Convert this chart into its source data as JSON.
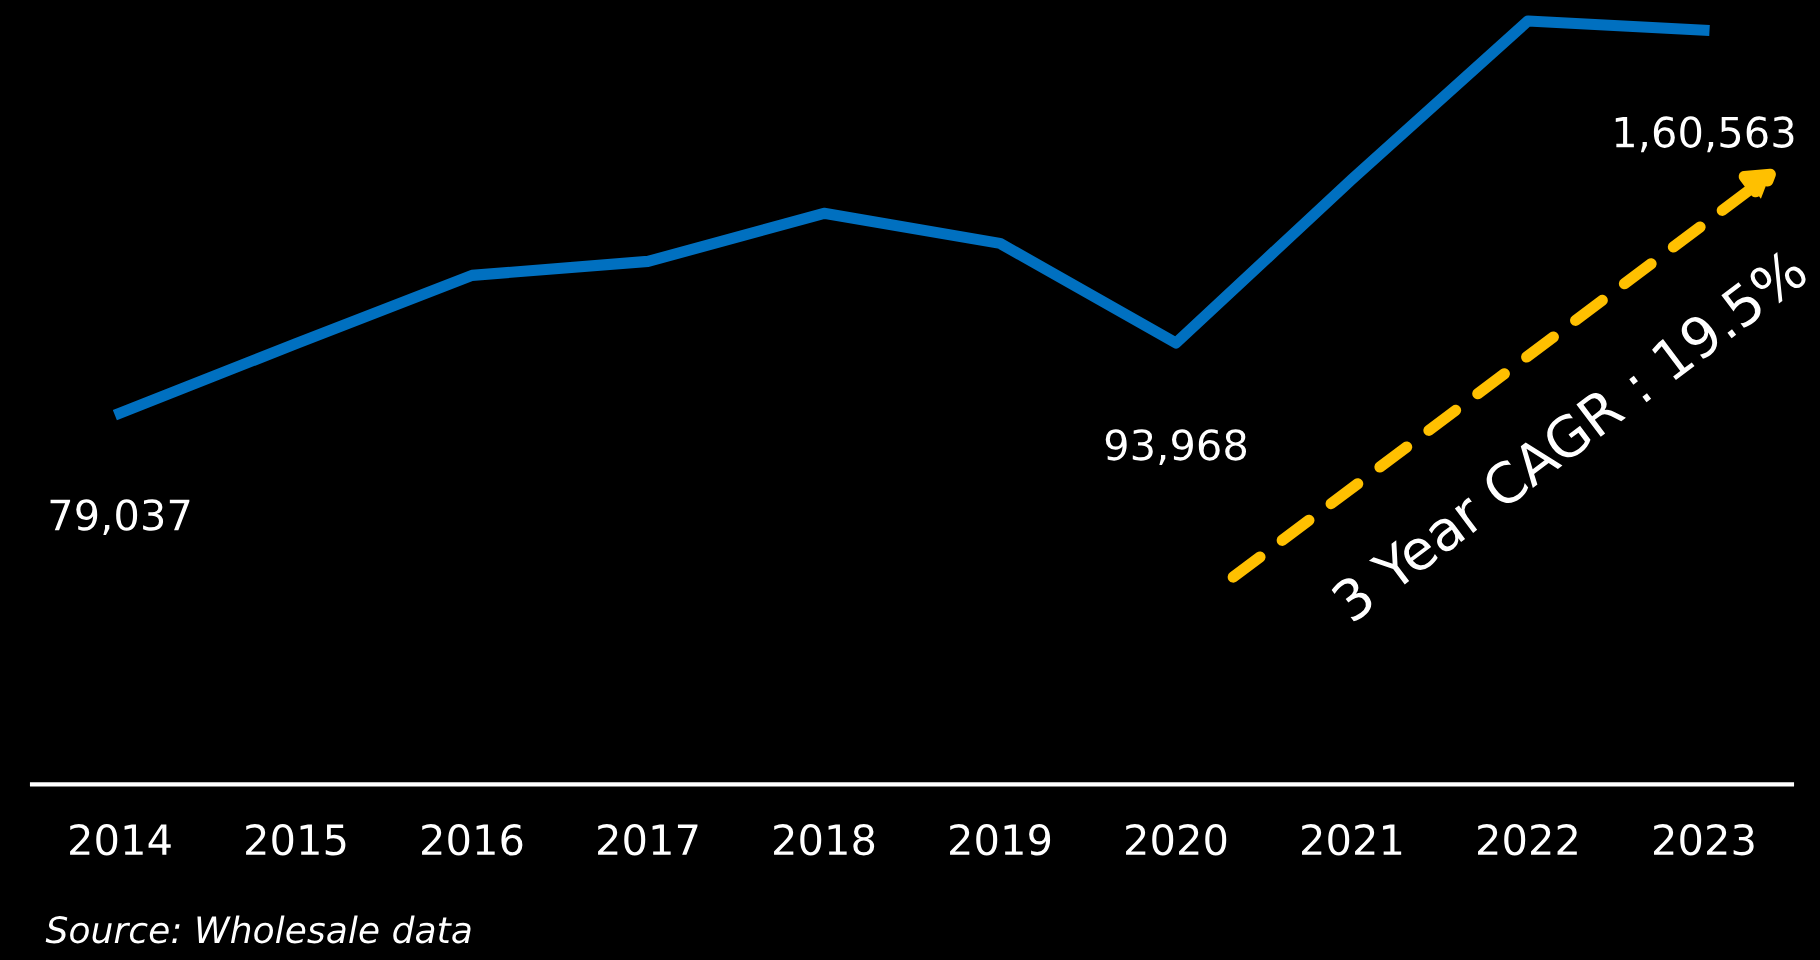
{
  "chart_data": {
    "type": "line",
    "categories": [
      "2014",
      "2015",
      "2016",
      "2017",
      "2018",
      "2019",
      "2020",
      "2021",
      "2022",
      "2023"
    ],
    "series": [
      {
        "color": "#0070c0",
        "values": [
          79037,
          93850,
          108360,
          111340,
          121580,
          115180,
          93968,
          128830,
          162530,
          160563
        ],
        "value_labels": [
          "79,037",
          null,
          null,
          null,
          null,
          null,
          "93,968",
          null,
          null,
          "1,60,563"
        ]
      }
    ],
    "ylim": [
      0,
      167000
    ],
    "tick_labels": "x",
    "grid": false,
    "legend": false,
    "marker": "none",
    "line_style": "solid",
    "annotations": [
      "3 Year CAGR : 19.5%",
      "Source: Wholesale data"
    ]
  }
}
